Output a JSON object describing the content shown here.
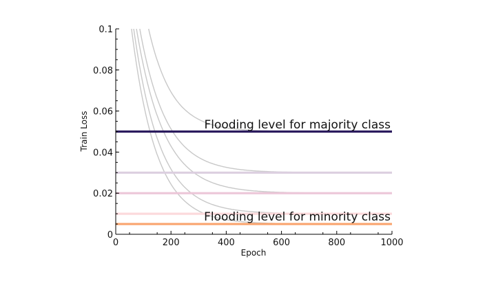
{
  "chart_data": {
    "type": "line",
    "title": "",
    "xlabel": "Epoch",
    "ylabel": "Train Loss",
    "xlim": [
      0,
      1000
    ],
    "ylim": [
      0,
      0.1
    ],
    "xticks": [
      0,
      200,
      400,
      600,
      800,
      1000
    ],
    "xtick_labels": [
      "0",
      "200",
      "400",
      "600",
      "800",
      "1000"
    ],
    "yticks": [
      0,
      0.02,
      0.04,
      0.06,
      0.08,
      0.1
    ],
    "ytick_labels": [
      "0",
      "0.02",
      "0.04",
      "0.06",
      "0.08",
      "0.1"
    ],
    "grid": false,
    "flooding_levels": [
      {
        "value": 0.05,
        "color": "#2b1b5e",
        "label": "Flooding level for majority class"
      },
      {
        "value": 0.03,
        "color": "#dccfe0"
      },
      {
        "value": 0.02,
        "color": "#ecc6d8"
      },
      {
        "value": 0.01,
        "color": "#fcdadc"
      },
      {
        "value": 0.005,
        "color": "#f9a46e",
        "label": "Flooding level for minority class"
      }
    ],
    "loss_curves": {
      "color": "#c8c8c8",
      "model": "y = asymptote + (0.1 - asymptote) * exp(-(epoch - start_epoch) / decay_epochs)",
      "series": [
        {
          "asymptote": 0.05,
          "start_epoch": 119,
          "decay_epochs": 85
        },
        {
          "asymptote": 0.03,
          "start_epoch": 87,
          "decay_epochs": 95
        },
        {
          "asymptote": 0.02,
          "start_epoch": 75,
          "decay_epochs": 100
        },
        {
          "asymptote": 0.01,
          "start_epoch": 65,
          "decay_epochs": 95
        },
        {
          "asymptote": 0.005,
          "start_epoch": 57,
          "decay_epochs": 90
        }
      ]
    }
  }
}
